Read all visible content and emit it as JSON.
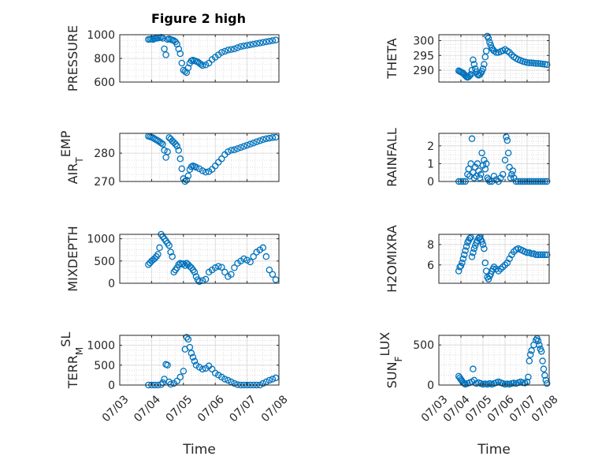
{
  "figure_title": "Figure 2 high",
  "chart_data": [
    {
      "type": "scatter",
      "name": "pressure",
      "ylabel": "PRESSURE",
      "ylabel_sub": "",
      "ylabel_tail": "",
      "xlabel": "",
      "xlim": [
        0,
        5
      ],
      "ylim": [
        600,
        1000
      ],
      "yticks": [
        600,
        800,
        1000
      ],
      "ytick_labels": [
        "600",
        "800",
        "1000"
      ],
      "xticks": [
        0,
        1,
        2,
        3,
        4,
        5
      ],
      "xtick_labels": [],
      "grid": true,
      "marker": "open-circle",
      "color": "#0072BD",
      "x": [
        0.9,
        0.95,
        1,
        1.05,
        1.1,
        1.15,
        1.2,
        1.25,
        1.3,
        1.35,
        1.4,
        1.45,
        1.5,
        1.55,
        1.6,
        1.65,
        1.7,
        1.75,
        1.8,
        1.85,
        1.9,
        1.95,
        2,
        2.05,
        2.1,
        2.15,
        2.2,
        2.25,
        2.3,
        2.35,
        2.4,
        2.45,
        2.5,
        2.55,
        2.6,
        2.7,
        2.8,
        2.9,
        3,
        3.1,
        3.2,
        3.3,
        3.4,
        3.5,
        3.6,
        3.7,
        3.8,
        3.9,
        4,
        4.1,
        4.2,
        4.3,
        4.4,
        4.5,
        4.6,
        4.7,
        4.8,
        4.9
      ],
      "y": [
        960,
        962,
        965,
        960,
        968,
        970,
        972,
        975,
        978,
        970,
        880,
        830,
        960,
        965,
        960,
        955,
        950,
        940,
        920,
        880,
        840,
        760,
        700,
        690,
        680,
        720,
        760,
        780,
        785,
        780,
        775,
        770,
        760,
        750,
        740,
        745,
        760,
        790,
        810,
        830,
        850,
        860,
        870,
        875,
        880,
        890,
        900,
        905,
        910,
        915,
        920,
        925,
        930,
        935,
        940,
        945,
        950,
        955
      ]
    },
    {
      "type": "scatter",
      "name": "theta",
      "ylabel": "THETA",
      "ylabel_sub": "",
      "ylabel_tail": "",
      "xlabel": "",
      "xlim": [
        0,
        5
      ],
      "ylim": [
        286,
        302
      ],
      "yticks": [
        290,
        295,
        300
      ],
      "ytick_labels": [
        "290",
        "295",
        "300"
      ],
      "xticks": [
        0,
        1,
        2,
        3,
        4,
        5
      ],
      "xtick_labels": [],
      "grid": true,
      "marker": "open-circle",
      "color": "#0072BD",
      "x": [
        0.9,
        0.95,
        1,
        1.05,
        1.1,
        1.15,
        1.2,
        1.25,
        1.3,
        1.35,
        1.4,
        1.45,
        1.5,
        1.55,
        1.6,
        1.65,
        1.7,
        1.75,
        1.8,
        1.85,
        1.9,
        1.95,
        2,
        2.05,
        2.1,
        2.15,
        2.2,
        2.25,
        2.3,
        2.35,
        2.4,
        2.45,
        2.5,
        2.6,
        2.7,
        2.8,
        2.9,
        3,
        3.1,
        3.2,
        3.3,
        3.4,
        3.5,
        3.6,
        3.7,
        3.8,
        3.9,
        4,
        4.1,
        4.2,
        4.3,
        4.4,
        4.5,
        4.6,
        4.7,
        4.8,
        4.9
      ],
      "y": [
        289.8,
        289.6,
        289.4,
        289.2,
        289,
        288.6,
        288.2,
        287.8,
        287.6,
        287.8,
        288.2,
        288.6,
        290,
        293.5,
        292,
        290.5,
        289.5,
        288.6,
        288.3,
        288.5,
        289,
        289.6,
        290.5,
        292,
        294.5,
        296.5,
        301.5,
        300.8,
        299.5,
        298.5,
        297.5,
        297,
        296.5,
        296,
        296,
        296.3,
        296.6,
        297,
        296.5,
        296,
        295.2,
        294.5,
        294,
        293.6,
        293.3,
        293,
        292.8,
        292.6,
        292.5,
        292.5,
        292.4,
        292.3,
        292.3,
        292.2,
        292.1,
        292,
        291.9
      ]
    },
    {
      "type": "scatter",
      "name": "air-temp",
      "ylabel": "AIR",
      "ylabel_sub": "T",
      "ylabel_tail": "EMP",
      "xlabel": "",
      "xlim": [
        0,
        5
      ],
      "ylim": [
        270,
        287
      ],
      "yticks": [
        270,
        280
      ],
      "ytick_labels": [
        "270",
        "280"
      ],
      "xticks": [
        0,
        1,
        2,
        3,
        4,
        5
      ],
      "xtick_labels": [],
      "grid": true,
      "marker": "open-circle",
      "color": "#0072BD",
      "x": [
        0.9,
        0.95,
        1,
        1.05,
        1.1,
        1.15,
        1.2,
        1.25,
        1.3,
        1.35,
        1.4,
        1.45,
        1.5,
        1.55,
        1.6,
        1.65,
        1.7,
        1.75,
        1.8,
        1.85,
        1.9,
        1.95,
        2,
        2.05,
        2.1,
        2.15,
        2.2,
        2.25,
        2.3,
        2.35,
        2.4,
        2.5,
        2.6,
        2.7,
        2.8,
        2.9,
        3,
        3.1,
        3.2,
        3.3,
        3.4,
        3.5,
        3.6,
        3.7,
        3.8,
        3.9,
        4,
        4.1,
        4.2,
        4.3,
        4.4,
        4.5,
        4.6,
        4.7,
        4.8,
        4.9
      ],
      "y": [
        286,
        285.8,
        285.6,
        285.4,
        285,
        284.7,
        284.4,
        284,
        283.6,
        283.2,
        281,
        278.5,
        280.5,
        285.5,
        285,
        284.3,
        283.8,
        283.2,
        282.5,
        281,
        278,
        274.5,
        271,
        270,
        270.5,
        272,
        274.2,
        275.2,
        275.5,
        275.3,
        275,
        274.5,
        273.8,
        273.3,
        273.5,
        274.3,
        275.5,
        276.8,
        278,
        279.5,
        280.5,
        281,
        281.2,
        281.6,
        282,
        282.4,
        282.8,
        283.2,
        283.6,
        284,
        284.4,
        284.8,
        285.1,
        285.3,
        285.5,
        285.6
      ]
    },
    {
      "type": "scatter",
      "name": "rainfall",
      "ylabel": "RAINFALL",
      "ylabel_sub": "",
      "ylabel_tail": "",
      "xlabel": "",
      "xlim": [
        0,
        5
      ],
      "ylim": [
        0,
        2.7
      ],
      "yticks": [
        0,
        1,
        2
      ],
      "ytick_labels": [
        "0",
        "1",
        "2"
      ],
      "xticks": [
        0,
        1,
        2,
        3,
        4,
        5
      ],
      "xtick_labels": [],
      "grid": true,
      "marker": "open-circle",
      "color": "#0072BD",
      "x": [
        0.9,
        1,
        1.1,
        1.2,
        1.3,
        1.35,
        1.4,
        1.45,
        1.5,
        1.55,
        1.6,
        1.65,
        1.7,
        1.75,
        1.8,
        1.85,
        1.9,
        1.95,
        2,
        2.05,
        2.1,
        2.15,
        2.2,
        2.25,
        2.3,
        2.4,
        2.5,
        2.6,
        2.7,
        2.8,
        2.9,
        3,
        3.05,
        3.1,
        3.15,
        3.2,
        3.25,
        3.3,
        3.35,
        3.4,
        3.5,
        3.6,
        3.7,
        3.8,
        3.9,
        4,
        4.1,
        4.2,
        4.3,
        4.4,
        4.5,
        4.6,
        4.7,
        4.8,
        4.9
      ],
      "y": [
        0,
        0,
        0,
        0,
        0.4,
        0.7,
        0.3,
        1.0,
        2.4,
        0.5,
        0.2,
        0.8,
        0.3,
        1.0,
        0.6,
        0.2,
        0.4,
        1.6,
        0.9,
        1.2,
        0.7,
        1.0,
        0.2,
        0.1,
        0,
        0,
        0.3,
        0.1,
        0,
        0.2,
        0.4,
        1.2,
        2.5,
        2.3,
        1.6,
        0.8,
        0.2,
        0.4,
        0.6,
        0.2,
        0,
        0,
        0,
        0,
        0,
        0,
        0,
        0,
        0,
        0,
        0,
        0,
        0,
        0,
        0
      ]
    },
    {
      "type": "scatter",
      "name": "mixdepth",
      "ylabel": "MIXDEPTH",
      "ylabel_sub": "",
      "ylabel_tail": "",
      "xlabel": "",
      "xlim": [
        0,
        5
      ],
      "ylim": [
        0,
        1100
      ],
      "yticks": [
        0,
        500,
        1000
      ],
      "ytick_labels": [
        "0",
        "500",
        "1000"
      ],
      "xticks": [
        0,
        1,
        2,
        3,
        4,
        5
      ],
      "xtick_labels": [],
      "grid": true,
      "marker": "open-circle",
      "color": "#0072BD",
      "x": [
        0.9,
        0.95,
        1,
        1.05,
        1.1,
        1.15,
        1.2,
        1.25,
        1.3,
        1.35,
        1.4,
        1.45,
        1.5,
        1.55,
        1.6,
        1.65,
        1.7,
        1.75,
        1.8,
        1.85,
        1.9,
        1.95,
        2,
        2.05,
        2.1,
        2.15,
        2.2,
        2.25,
        2.3,
        2.35,
        2.4,
        2.45,
        2.5,
        2.6,
        2.7,
        2.8,
        2.9,
        3,
        3.1,
        3.2,
        3.3,
        3.4,
        3.5,
        3.6,
        3.7,
        3.8,
        3.9,
        4,
        4.1,
        4.2,
        4.3,
        4.4,
        4.5,
        4.6,
        4.7,
        4.8,
        4.9
      ],
      "y": [
        420,
        460,
        500,
        530,
        560,
        600,
        650,
        800,
        1100,
        1050,
        1000,
        950,
        900,
        850,
        700,
        600,
        250,
        300,
        350,
        420,
        450,
        430,
        440,
        400,
        450,
        420,
        380,
        350,
        300,
        250,
        150,
        80,
        40,
        60,
        90,
        250,
        300,
        350,
        380,
        360,
        250,
        150,
        200,
        350,
        450,
        500,
        550,
        520,
        480,
        600,
        700,
        750,
        800,
        600,
        300,
        200,
        80
      ]
    },
    {
      "type": "scatter",
      "name": "h2omixra",
      "ylabel": "H2OMIXRA",
      "ylabel_sub": "",
      "ylabel_tail": "",
      "xlabel": "",
      "xlim": [
        0,
        5
      ],
      "ylim": [
        4.2,
        9
      ],
      "yticks": [
        6,
        8
      ],
      "ytick_labels": [
        "6",
        "8"
      ],
      "xticks": [
        0,
        1,
        2,
        3,
        4,
        5
      ],
      "xtick_labels": [],
      "grid": true,
      "marker": "open-circle",
      "color": "#0072BD",
      "x": [
        0.9,
        0.95,
        1,
        1.05,
        1.1,
        1.15,
        1.2,
        1.25,
        1.3,
        1.35,
        1.4,
        1.45,
        1.5,
        1.55,
        1.6,
        1.65,
        1.7,
        1.75,
        1.8,
        1.85,
        1.9,
        1.95,
        2,
        2.05,
        2.1,
        2.15,
        2.2,
        2.25,
        2.3,
        2.35,
        2.4,
        2.45,
        2.5,
        2.6,
        2.7,
        2.8,
        2.9,
        3,
        3.1,
        3.2,
        3.3,
        3.4,
        3.5,
        3.6,
        3.7,
        3.8,
        3.9,
        4,
        4.1,
        4.2,
        4.3,
        4.4,
        4.5,
        4.6,
        4.7,
        4.8,
        4.9
      ],
      "y": [
        5.4,
        5.8,
        5.9,
        6.2,
        6.6,
        7,
        7.4,
        7.8,
        8.2,
        8.4,
        8.6,
        8.7,
        6.8,
        7.2,
        7.6,
        7.9,
        8.2,
        8.4,
        8.6,
        8.7,
        8.5,
        8.3,
        8,
        7.6,
        6.2,
        5.4,
        4.8,
        4.6,
        4.9,
        5.1,
        5.4,
        5.6,
        5.8,
        5.6,
        5.4,
        5.6,
        5.8,
        6,
        6.2,
        6.6,
        7,
        7.3,
        7.5,
        7.6,
        7.5,
        7.4,
        7.3,
        7.2,
        7.2,
        7.1,
        7.1,
        7,
        7,
        7,
        7,
        7,
        7
      ]
    },
    {
      "type": "scatter",
      "name": "terrain-msl",
      "ylabel": "TERR",
      "ylabel_sub": "M",
      "ylabel_tail": "SL",
      "xlabel": "Time",
      "xlim": [
        0,
        5
      ],
      "ylim": [
        0,
        1250
      ],
      "yticks": [
        0,
        500,
        1000
      ],
      "ytick_labels": [
        "0",
        "500",
        "1000"
      ],
      "xticks": [
        0,
        1,
        2,
        3,
        4,
        5
      ],
      "xtick_labels": [
        "07/03",
        "07/04",
        "07/05",
        "07/06",
        "07/07",
        "07/08"
      ],
      "grid": true,
      "marker": "open-circle",
      "color": "#0072BD",
      "x": [
        0.9,
        1,
        1.1,
        1.2,
        1.3,
        1.35,
        1.4,
        1.45,
        1.5,
        1.55,
        1.6,
        1.7,
        1.8,
        1.9,
        2,
        2.05,
        2.1,
        2.15,
        2.2,
        2.25,
        2.3,
        2.35,
        2.4,
        2.5,
        2.6,
        2.7,
        2.8,
        2.9,
        3,
        3.1,
        3.2,
        3.3,
        3.4,
        3.5,
        3.6,
        3.7,
        3.8,
        3.9,
        4,
        4.1,
        4.2,
        4.3,
        4.4,
        4.5,
        4.6,
        4.7,
        4.8,
        4.9
      ],
      "y": [
        0,
        0,
        0,
        0,
        10,
        60,
        150,
        520,
        500,
        80,
        20,
        40,
        100,
        200,
        350,
        900,
        1200,
        1150,
        950,
        800,
        700,
        600,
        500,
        450,
        400,
        420,
        480,
        400,
        300,
        250,
        200,
        150,
        120,
        80,
        40,
        10,
        0,
        0,
        0,
        0,
        0,
        0,
        0,
        40,
        80,
        120,
        150,
        180
      ]
    },
    {
      "type": "scatter",
      "name": "sunflux",
      "ylabel": "SUN",
      "ylabel_sub": "F",
      "ylabel_tail": "LUX",
      "xlabel": "Time",
      "xlim": [
        0,
        5
      ],
      "ylim": [
        0,
        620
      ],
      "yticks": [
        0,
        500
      ],
      "ytick_labels": [
        "0",
        "500"
      ],
      "xticks": [
        0,
        1,
        2,
        3,
        4,
        5
      ],
      "xtick_labels": [
        "07/03",
        "07/04",
        "07/05",
        "07/06",
        "07/07",
        "07/08"
      ],
      "grid": true,
      "marker": "open-circle",
      "color": "#0072BD",
      "x": [
        0.9,
        0.95,
        1,
        1.05,
        1.1,
        1.15,
        1.2,
        1.3,
        1.4,
        1.5,
        1.55,
        1.6,
        1.7,
        1.8,
        1.9,
        2,
        2.1,
        2.2,
        2.3,
        2.4,
        2.5,
        2.6,
        2.7,
        2.8,
        2.9,
        3,
        3.1,
        3.2,
        3.3,
        3.4,
        3.5,
        3.6,
        3.7,
        3.8,
        3.9,
        4,
        4.05,
        4.1,
        4.15,
        4.2,
        4.3,
        4.4,
        4.45,
        4.5,
        4.55,
        4.6,
        4.65,
        4.7,
        4.75,
        4.8,
        4.85,
        4.9
      ],
      "y": [
        110,
        90,
        70,
        50,
        30,
        20,
        10,
        20,
        30,
        40,
        200,
        60,
        20,
        30,
        20,
        10,
        15,
        10,
        20,
        10,
        20,
        30,
        40,
        30,
        20,
        10,
        15,
        10,
        20,
        25,
        20,
        30,
        40,
        30,
        25,
        40,
        100,
        300,
        380,
        430,
        500,
        560,
        580,
        550,
        500,
        450,
        420,
        300,
        200,
        120,
        60,
        20
      ]
    }
  ]
}
